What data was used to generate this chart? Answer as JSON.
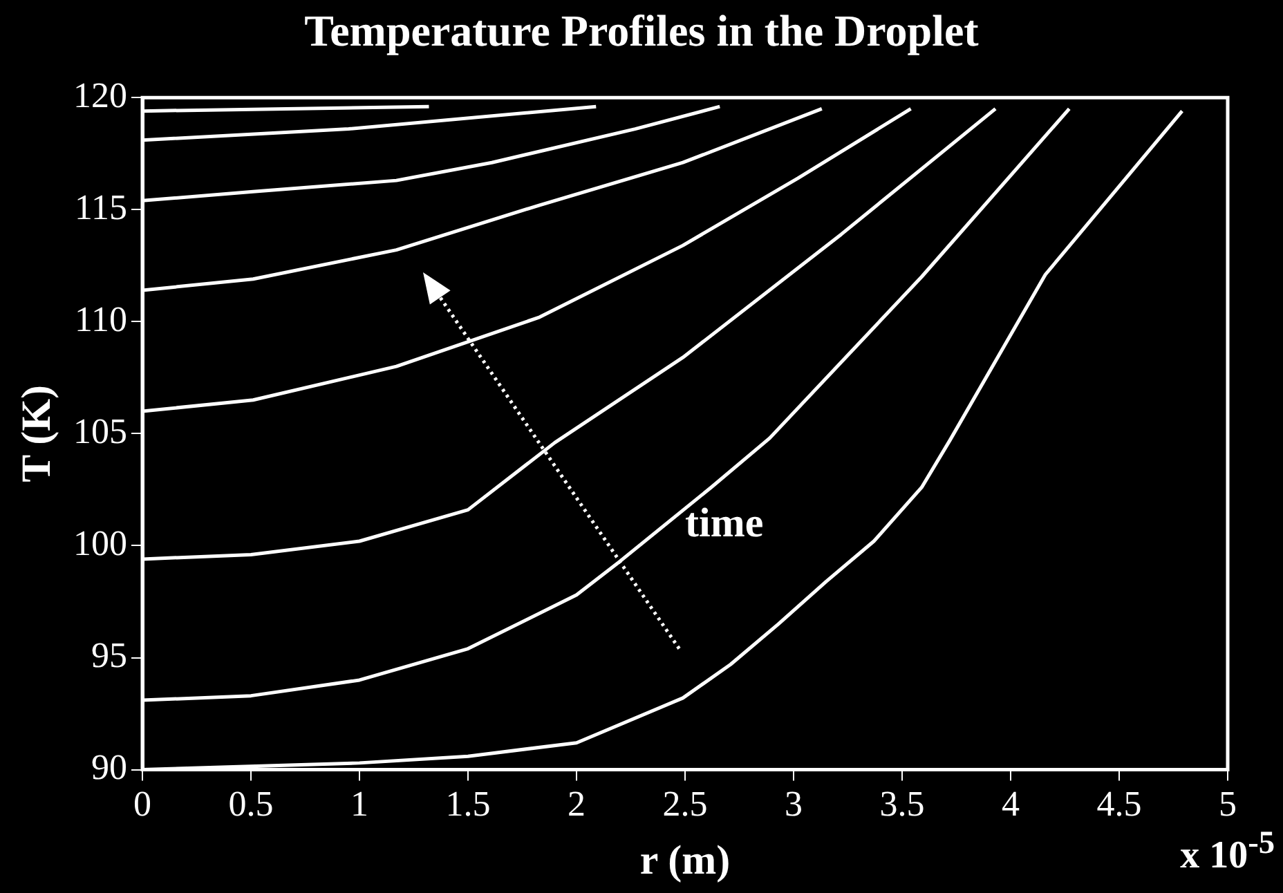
{
  "chart_data": {
    "type": "line",
    "title": "Temperature Profiles in the Droplet",
    "xlabel": "r (m)",
    "ylabel": "T (K)",
    "annotations": [
      "time",
      "x 10$^{-5}$"
    ],
    "xlim": [
      0,
      5
    ],
    "ylim": [
      90,
      120
    ],
    "xticks": [
      0,
      0.5,
      1,
      1.5,
      2,
      2.5,
      3,
      3.5,
      4,
      4.5,
      5
    ],
    "yticks": [
      90,
      95,
      100,
      105,
      110,
      115,
      120
    ],
    "marker": "none",
    "line_style": "solid",
    "series": [
      {
        "color": "#ffffff",
        "x": [
          0,
          1,
          1.5,
          2,
          2.49,
          2.71,
          2.93,
          3.15,
          3.37,
          3.59,
          3.72,
          4.16,
          4.79
        ],
        "values": [
          90,
          90.3,
          90.6,
          91.2,
          93.2,
          94.7,
          96.5,
          98.4,
          100.2,
          102.6,
          104.7,
          112.1,
          119.4
        ]
      },
      {
        "color": "#ffffff",
        "x": [
          0,
          0.5,
          1,
          1.5,
          2,
          2.2,
          2.62,
          2.89,
          3.59,
          4.27
        ],
        "values": [
          93.1,
          93.3,
          94,
          95.4,
          97.8,
          99.3,
          102.6,
          104.8,
          112,
          119.5
        ]
      },
      {
        "color": "#ffffff",
        "x": [
          0,
          0.5,
          1,
          1.5,
          1.9,
          2.49,
          3.22,
          3.93
        ],
        "values": [
          99.4,
          99.6,
          100.2,
          101.6,
          104.6,
          108.4,
          113.9,
          119.5
        ]
      },
      {
        "color": "#ffffff",
        "x": [
          0,
          0.51,
          1.17,
          1.83,
          2.49,
          3.02,
          3.54
        ],
        "values": [
          106,
          106.5,
          108,
          110.2,
          113.4,
          116.4,
          119.5
        ]
      },
      {
        "color": "#ffffff",
        "x": [
          0,
          0.51,
          1.17,
          1.83,
          2.49,
          3.13
        ],
        "values": [
          111.4,
          111.9,
          113.2,
          115.2,
          117.1,
          119.5
        ]
      },
      {
        "color": "#ffffff",
        "x": [
          0,
          0.51,
          1.17,
          1.61,
          2.27,
          2.66
        ],
        "values": [
          115.4,
          115.8,
          116.3,
          117.1,
          118.6,
          119.6
        ]
      },
      {
        "color": "#ffffff",
        "x": [
          0,
          0.95,
          2.09
        ],
        "values": [
          118.1,
          118.6,
          119.6
        ]
      },
      {
        "color": "#ffffff",
        "x": [
          0,
          1.32
        ],
        "values": [
          119.4,
          119.6
        ]
      }
    ]
  }
}
